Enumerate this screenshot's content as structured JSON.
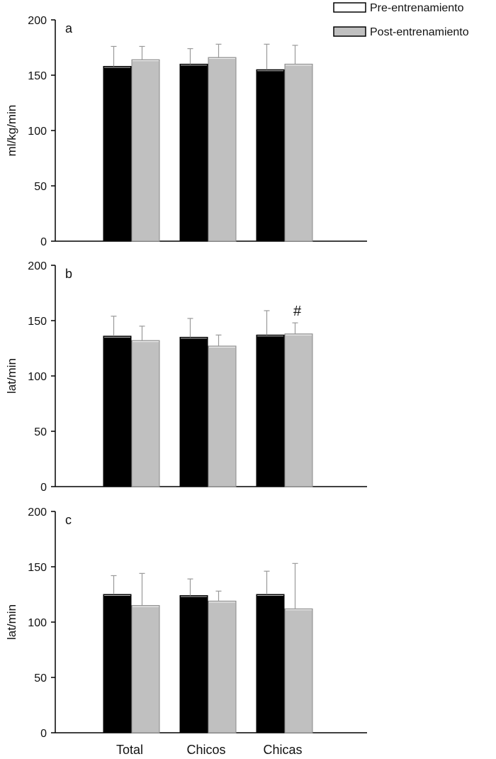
{
  "legend": {
    "items": [
      {
        "label": "Pre-entrenamiento",
        "color": "#ffffff"
      },
      {
        "label": "Post-entrenamiento",
        "color": "#c0c0c0"
      }
    ]
  },
  "chart_data": [
    {
      "type": "bar",
      "panel_label": "a",
      "categories": [
        "Total",
        "Chicos",
        "Chicas"
      ],
      "ylabel": "ml/kg/min",
      "ylim": [
        0,
        200
      ],
      "yticks": [
        0,
        50,
        100,
        150,
        200
      ],
      "series": [
        {
          "name": "Pre-entrenamiento",
          "color": "#000000",
          "values": [
            158,
            160,
            155
          ],
          "errors": [
            18,
            14,
            23
          ]
        },
        {
          "name": "Post-entrenamiento",
          "color": "#c0c0c0",
          "values": [
            164,
            166,
            160
          ],
          "errors": [
            12,
            12,
            17
          ]
        }
      ],
      "annotations": []
    },
    {
      "type": "bar",
      "panel_label": "b",
      "categories": [
        "Total",
        "Chicos",
        "Chicas"
      ],
      "ylabel": "lat/min",
      "ylim": [
        0,
        200
      ],
      "yticks": [
        0,
        50,
        100,
        150,
        200
      ],
      "series": [
        {
          "name": "Pre-entrenamiento",
          "color": "#000000",
          "values": [
            136,
            135,
            137
          ],
          "errors": [
            18,
            17,
            22
          ]
        },
        {
          "name": "Post-entrenamiento",
          "color": "#c0c0c0",
          "values": [
            132,
            127,
            138
          ],
          "errors": [
            13,
            10,
            10
          ]
        }
      ],
      "annotations": [
        {
          "text": "#",
          "category": "Chicas",
          "series": "Post-entrenamiento"
        }
      ]
    },
    {
      "type": "bar",
      "panel_label": "c",
      "categories": [
        "Total",
        "Chicos",
        "Chicas"
      ],
      "ylabel": "lat/min",
      "ylim": [
        0,
        200
      ],
      "yticks": [
        0,
        50,
        100,
        150,
        200
      ],
      "series": [
        {
          "name": "Pre-entrenamiento",
          "color": "#000000",
          "values": [
            125,
            124,
            125
          ],
          "errors": [
            17,
            15,
            21
          ]
        },
        {
          "name": "Post-entrenamiento",
          "color": "#c0c0c0",
          "values": [
            115,
            119,
            112
          ],
          "errors": [
            29,
            9,
            41
          ]
        }
      ],
      "annotations": []
    }
  ]
}
